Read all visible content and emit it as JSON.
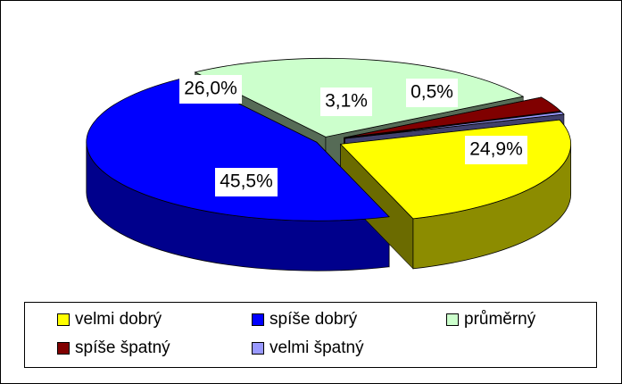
{
  "chart_data": {
    "type": "pie",
    "style": "3d-exploded",
    "slices": [
      {
        "name": "velmi dobrý",
        "value": 24.9,
        "label": "24,9%",
        "color": "#FFFF00"
      },
      {
        "name": "spíše dobrý",
        "value": 45.5,
        "label": "45,5%",
        "color": "#0000FF"
      },
      {
        "name": "průměrný",
        "value": 26.0,
        "label": "26,0%",
        "color": "#CCFFCC"
      },
      {
        "name": "spíše špatný",
        "value": 3.1,
        "label": "3,1%",
        "color": "#800000"
      },
      {
        "name": "velmi špatný",
        "value": 0.5,
        "label": "0,5%",
        "color": "#9999FF"
      }
    ],
    "legend_position": "bottom"
  }
}
